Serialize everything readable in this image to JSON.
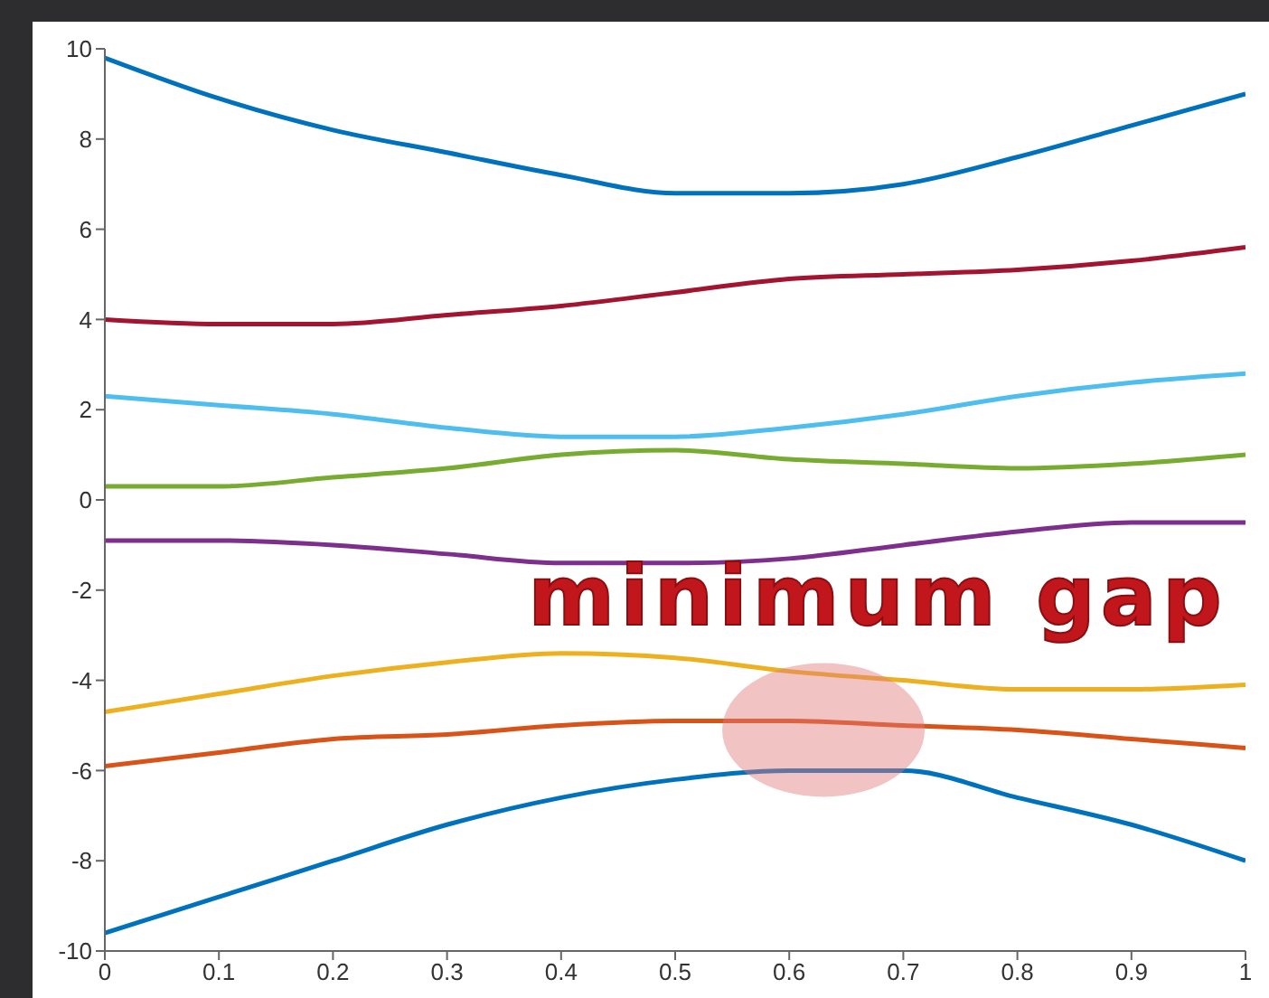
{
  "chart_data": {
    "type": "line",
    "x": [
      0,
      0.1,
      0.2,
      0.3,
      0.4,
      0.5,
      0.6,
      0.7,
      0.8,
      0.9,
      1
    ],
    "series": [
      {
        "color": "#0072bd",
        "values": [
          9.8,
          8.9,
          8.2,
          7.7,
          7.2,
          6.8,
          6.8,
          7.0,
          7.6,
          8.3,
          9.0
        ]
      },
      {
        "color": "#a2142f",
        "values": [
          4.0,
          3.9,
          3.9,
          4.1,
          4.3,
          4.6,
          4.9,
          5.0,
          5.1,
          5.3,
          5.6
        ]
      },
      {
        "color": "#4dbeee",
        "values": [
          2.3,
          2.1,
          1.9,
          1.6,
          1.4,
          1.4,
          1.6,
          1.9,
          2.3,
          2.6,
          2.8
        ]
      },
      {
        "color": "#77ac30",
        "values": [
          0.3,
          0.3,
          0.5,
          0.7,
          1.0,
          1.1,
          0.9,
          0.8,
          0.7,
          0.8,
          1.0
        ]
      },
      {
        "color": "#7e2f8e",
        "values": [
          -0.9,
          -0.9,
          -1.0,
          -1.2,
          -1.4,
          -1.4,
          -1.3,
          -1.0,
          -0.7,
          -0.5,
          -0.5
        ]
      },
      {
        "color": "#edb120",
        "values": [
          -4.7,
          -4.3,
          -3.9,
          -3.6,
          -3.4,
          -3.5,
          -3.8,
          -4.0,
          -4.2,
          -4.2,
          -4.1
        ]
      },
      {
        "color": "#d95319",
        "values": [
          -5.9,
          -5.6,
          -5.3,
          -5.2,
          -5.0,
          -4.9,
          -4.9,
          -5.0,
          -5.1,
          -5.3,
          -5.5
        ]
      },
      {
        "color": "#0072bd",
        "values": [
          -9.6,
          -8.8,
          -8.0,
          -7.2,
          -6.6,
          -6.2,
          -6.0,
          -6.0,
          -6.6,
          -7.2,
          -8.0
        ]
      }
    ],
    "xlim": [
      0,
      1
    ],
    "xticks": [
      0,
      0.1,
      0.2,
      0.3,
      0.4,
      0.5,
      0.6,
      0.7,
      0.8,
      0.9,
      1
    ],
    "ylim": [
      -10,
      10
    ],
    "yticks": [
      -10,
      -8,
      -6,
      -4,
      -2,
      0,
      2,
      4,
      6,
      8,
      10
    ],
    "grid": false,
    "legend": false,
    "marker": "none",
    "line_style": "solid",
    "annotations": [
      {
        "text": "minimum gap",
        "x": 0.63,
        "y": -5.1
      }
    ]
  }
}
